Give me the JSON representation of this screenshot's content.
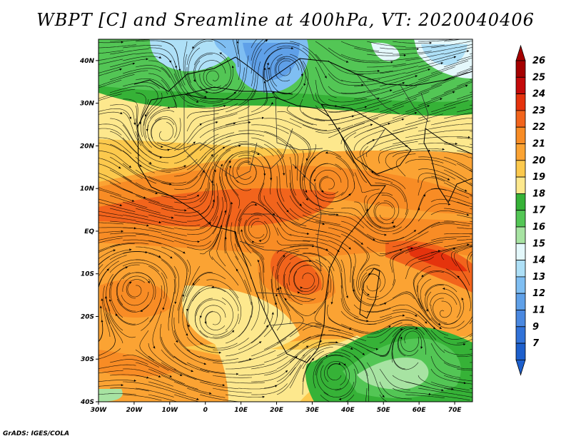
{
  "title": "WBPT [C] and Sreamline at 400hPa, VT: 2020040406",
  "footer": "GrADS: IGES/COLA",
  "map": {
    "lon_range": [
      -30,
      75
    ],
    "lat_range": [
      -40,
      45
    ],
    "lon_ticks": [
      {
        "v": -30,
        "label": "30W"
      },
      {
        "v": -20,
        "label": "20W"
      },
      {
        "v": -10,
        "label": "10W"
      },
      {
        "v": 0,
        "label": "0"
      },
      {
        "v": 10,
        "label": "10E"
      },
      {
        "v": 20,
        "label": "20E"
      },
      {
        "v": 30,
        "label": "30E"
      },
      {
        "v": 40,
        "label": "40E"
      },
      {
        "v": 50,
        "label": "50E"
      },
      {
        "v": 60,
        "label": "60E"
      },
      {
        "v": 70,
        "label": "70E"
      }
    ],
    "lat_ticks": [
      {
        "v": 40,
        "label": "40N"
      },
      {
        "v": 30,
        "label": "30N"
      },
      {
        "v": 20,
        "label": "20N"
      },
      {
        "v": 10,
        "label": "10N"
      },
      {
        "v": 0,
        "label": "EQ"
      },
      {
        "v": -10,
        "label": "10S"
      },
      {
        "v": -20,
        "label": "20S"
      },
      {
        "v": -30,
        "label": "30S"
      },
      {
        "v": -40,
        "label": "40S"
      }
    ]
  },
  "colorbar": {
    "levels": [
      {
        "label": "26",
        "color": "#a50000"
      },
      {
        "label": "25",
        "color": "#c40a0a"
      },
      {
        "label": "24",
        "color": "#e5330d"
      },
      {
        "label": "23",
        "color": "#f2641c"
      },
      {
        "label": "22",
        "color": "#f88c25"
      },
      {
        "label": "21",
        "color": "#fba333"
      },
      {
        "label": "20",
        "color": "#fcc94d"
      },
      {
        "label": "19",
        "color": "#fde88d"
      },
      {
        "label": "18",
        "color": "#36b237"
      },
      {
        "label": "17",
        "color": "#53c655"
      },
      {
        "label": "16",
        "color": "#a7e3a2"
      },
      {
        "label": "15",
        "color": "#e4f8fb"
      },
      {
        "label": "14",
        "color": "#aee0f7"
      },
      {
        "label": "13",
        "color": "#7fbef2"
      },
      {
        "label": "12",
        "color": "#5fa0e8"
      },
      {
        "label": "11",
        "color": "#4a88e0"
      },
      {
        "label": "9",
        "color": "#3172d8"
      },
      {
        "label": "7",
        "color": "#1d5fcc"
      }
    ],
    "top_color": "#a50000",
    "bottom_color": "#1d5fcc"
  }
}
